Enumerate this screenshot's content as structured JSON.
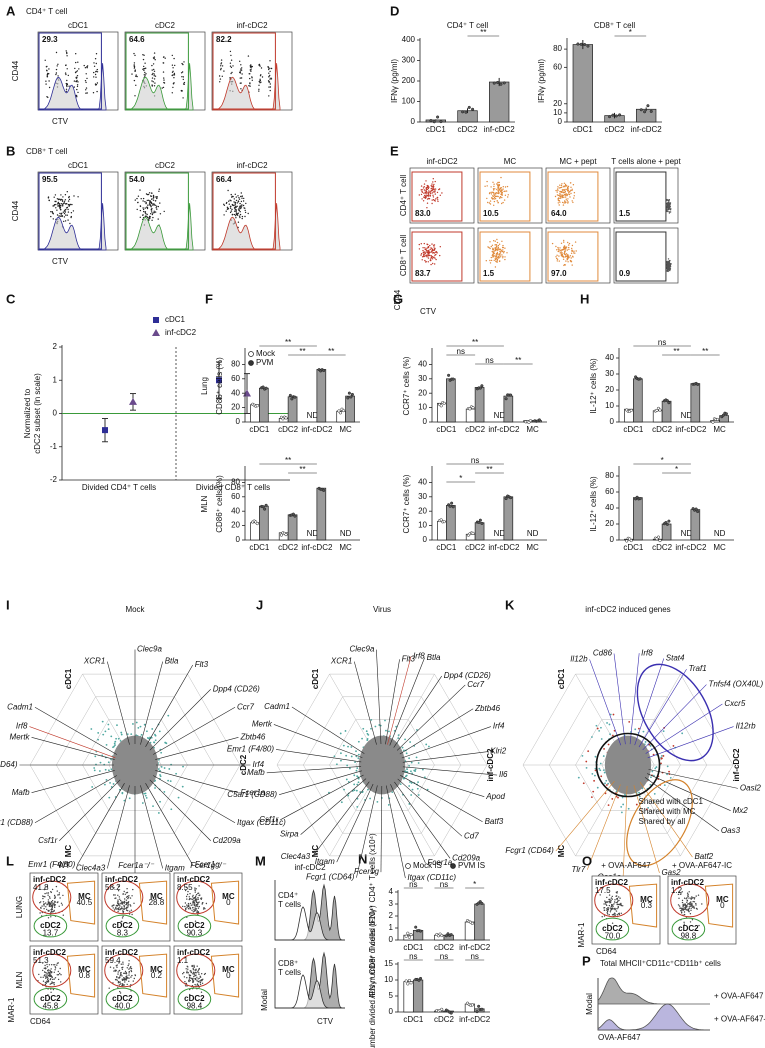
{
  "panels": {
    "A": {
      "label": "A",
      "title": "CD4⁺ T cell",
      "gates": [
        "cDC1",
        "cDC2",
        "inf-cDC2"
      ],
      "gate_values": [
        "29.3",
        "64.6",
        "82.2"
      ],
      "gate_colors": [
        "#2e2e96",
        "#3a9a3a",
        "#c0392b"
      ],
      "y_label": "CD44",
      "x_label": "CTV"
    },
    "B": {
      "label": "B",
      "title": "CD8⁺ T cell",
      "gates": [
        "cDC1",
        "cDC2",
        "inf-cDC2"
      ],
      "gate_values": [
        "95.5",
        "54.0",
        "66.4"
      ],
      "gate_colors": [
        "#2e2e96",
        "#3a9a3a",
        "#c0392b"
      ],
      "y_label": "CD44",
      "x_label": "CTV"
    },
    "C": {
      "label": "C"
    },
    "D": {
      "label": "D"
    },
    "E": {
      "label": "E",
      "columns": [
        "inf-cDC2",
        "MC",
        "MC + pept",
        "T cells alone + pept"
      ],
      "rows": [
        "CD4⁺ T cell",
        "CD8⁺ T cell"
      ],
      "values": [
        [
          "83.0",
          "10.5",
          "64.0",
          "1.5"
        ],
        [
          "83.7",
          "1.5",
          "97.0",
          "0.9"
        ]
      ],
      "column_colors": [
        "#c0392b",
        "#e08a3c",
        "#e08a3c",
        "#333333"
      ],
      "y_label": "CD44",
      "x_label": "CTV"
    },
    "F": {
      "label": "F"
    },
    "G": {
      "label": "G"
    },
    "H": {
      "label": "H"
    },
    "I": {
      "label": "I",
      "title": "Mock",
      "corners": [
        "cDC1",
        "cDC2",
        "MC"
      ],
      "corner_colors": [
        "#2e2e96",
        "#3a9a3a",
        "#d4822a"
      ],
      "genes": [
        "XCR1",
        "Clec9a",
        "Btla",
        "Flt3",
        "Dpp4 (CD26)",
        "Ccr7",
        "Zbtb46",
        "Irf4",
        "Fcer1a",
        "Itgax (CD11c)",
        "Cd209a",
        "Fcer1g",
        "Itgam",
        "Sirpa",
        "Clec4a3",
        "Emr1 (F4/80)",
        "Csf1r",
        "C5ar1 (CD88)",
        "Mafb",
        "Fcgr1 (CD64)",
        "Mertk",
        "Cadm1"
      ],
      "highlighted_genes": [
        "Irf8"
      ]
    },
    "J": {
      "label": "J",
      "title": "Virus",
      "corners": [
        "cDC1",
        "inf-cDC2",
        "MC"
      ],
      "corner_colors": [
        "#2e2e96",
        "#c0392b",
        "#d4822a"
      ],
      "genes": [
        "XCR1",
        "Clec9a",
        "Flt3",
        "Btla",
        "Dpp4 (CD26)",
        "Ccr7",
        "Zbtb46",
        "Irf4",
        "Klri2",
        "Il6",
        "Apod",
        "Batf3",
        "Cd7",
        "Cd209a",
        "Fcer1a",
        "Itgax (CD11c)",
        "Fcer1g",
        "Fcgr1 (CD64)",
        "Itgam",
        "Clec4a3",
        "Sirpa",
        "Csf1r",
        "C5ar1 (CD88)",
        "Mafb",
        "Emr1 (F4/80)",
        "Mertk",
        "Cadm1"
      ],
      "highlighted_genes": [
        "Irf8"
      ]
    },
    "K": {
      "label": "K",
      "title": "inf-cDC2 induced genes",
      "corners": [
        "cDC1",
        "inf-cDC2",
        "MC"
      ],
      "corner_colors": [
        "#2e2e96",
        "#c0392b",
        "#d4822a"
      ],
      "genes_cdc1": [
        "Il12b",
        "Cd86",
        "Irf8",
        "Stat4",
        "Traf1",
        "Tnfsf4 (OX40L)",
        "Cxcr5",
        "Il12rb"
      ],
      "genes_all": [
        "Oasl2",
        "Mx2",
        "Oas3"
      ],
      "genes_mc": [
        "Batf2",
        "Gas2",
        "Oas1a",
        "Tlr7",
        "Fcgr1 (CD64)"
      ],
      "legend": [
        "Shared with cDC1",
        "Shared with MC",
        "Shared by all"
      ],
      "legend_colors": [
        "#3a2fb0",
        "#d4822a",
        "#222222"
      ]
    },
    "L": {
      "label": "L",
      "columns": [
        "WT",
        "Fcer1a⁻/⁻",
        "Fcer1g⁻/⁻"
      ],
      "rows": [
        "LUNG",
        "MLN"
      ],
      "gates": [
        "inf-cDC2",
        "MC",
        "cDC2"
      ],
      "gate_colors": [
        "#c0392b",
        "#d4822a",
        "#3a9a3a"
      ],
      "values": [
        [
          [
            "41.8",
            "40.5",
            "13.7"
          ],
          [
            "58.2",
            "28.8",
            "8.3"
          ],
          [
            "8.55",
            "0",
            "90.3"
          ]
        ],
        [
          [
            "51.3",
            "0.8",
            "45.8"
          ],
          [
            "59.4",
            "0.2",
            "40.0"
          ],
          [
            "1.1",
            "0",
            "98.4"
          ]
        ]
      ],
      "y_label": "MAR-1",
      "x_label": "CD64"
    },
    "M": {
      "label": "M",
      "title": "inf-cDC2",
      "plots": [
        [
          "CD4⁺",
          "T cells"
        ],
        [
          "CD8⁺",
          "T cells"
        ]
      ],
      "y_label": "Modal",
      "x_label": "CTV"
    },
    "N": {
      "label": "N"
    },
    "O": {
      "label": "O",
      "columns": [
        "+ OVA-AF647",
        "+ OVA-AF647-IC"
      ],
      "gates": [
        "inf-cDC2",
        "MC",
        "cDC2"
      ],
      "gate_colors": [
        "#c0392b",
        "#d4822a",
        "#3a9a3a"
      ],
      "values": [
        [
          "17.5",
          "0.3",
          "70.0"
        ],
        [
          "1.2",
          "0",
          "98.8"
        ]
      ],
      "y_label": "MAR-1",
      "x_label": "CD64"
    },
    "P": {
      "label": "P",
      "title": "Total MHCII⁺CD11c⁺CD11b⁺ cells",
      "traces": [
        "+ OVA-AF647",
        "+ OVA-AF647-IC"
      ],
      "trace_colors": [
        "#777777",
        "#8c86c8"
      ],
      "y_label": "Modal",
      "x_label": "OVA-AF647"
    }
  },
  "chart_data": [
    {
      "type": "errorbar",
      "y_label": [
        "Normalized to",
        "cDC2 subset (ln scale)"
      ],
      "categories": [
        "Divided CD4⁺ T cells",
        "Divided CD8⁺ T cells"
      ],
      "series": [
        {
          "name": "cDC1",
          "color": "#2e2e96",
          "marker": "square",
          "values": [
            -0.5,
            1.0
          ],
          "errors": [
            0.35,
            0.55
          ]
        },
        {
          "name": "inf-cDC2",
          "color": "#6a4a8c",
          "marker": "triangle",
          "values": [
            0.35,
            0.6
          ],
          "errors": [
            0.25,
            0.6
          ]
        }
      ],
      "ylim": [
        -2,
        2
      ],
      "yticks": [
        -2,
        -1,
        0,
        1,
        2
      ]
    },
    {
      "type": "bar",
      "title": "CD4⁺ T cell",
      "y_label": "IFNγ (pg/ml)",
      "categories": [
        "cDC1",
        "cDC2",
        "inf-cDC2"
      ],
      "values": [
        10,
        55,
        195
      ],
      "errors": [
        3,
        12,
        20
      ],
      "color": "#9a9a9a",
      "ylim": [
        0,
        400
      ],
      "yticks": [
        0,
        100,
        200,
        300,
        400
      ],
      "annotations": [
        "**"
      ]
    },
    {
      "type": "bar",
      "title": "CD8⁺ T cell",
      "y_label": "IFNγ (pg/ml)",
      "categories": [
        "cDC1",
        "cDC2",
        "inf-cDC2"
      ],
      "values": [
        85,
        7,
        14
      ],
      "errors": [
        5,
        3,
        2
      ],
      "color": "#9a9a9a",
      "ylim": [
        0,
        90
      ],
      "yticks": [
        0,
        10,
        20,
        60,
        80
      ],
      "annotations": [
        "*"
      ]
    },
    {
      "type": "bar",
      "row_label": "Lung",
      "legend": true,
      "y_label": "CD86⁺ cells (%)",
      "categories": [
        "cDC1",
        "cDC2",
        "inf-cDC2",
        "MC"
      ],
      "series": [
        {
          "name": "Mock",
          "color": "#ffffff",
          "values": [
            24,
            5,
            null,
            15
          ]
        },
        {
          "name": "PVM",
          "color": "#9a9a9a",
          "values": [
            47,
            35,
            73,
            36
          ]
        }
      ],
      "ylim": [
        0,
        100
      ],
      "yticks": [
        0,
        20,
        40,
        60,
        80
      ],
      "nd_label": "ND",
      "annotations": [
        "**",
        "**",
        "**"
      ]
    },
    {
      "type": "bar",
      "row_label": "MLN",
      "y_label": "CD86⁺ cells (%)",
      "categories": [
        "cDC1",
        "cDC2",
        "inf-cDC2",
        "MC"
      ],
      "series": [
        {
          "name": "Mock",
          "color": "#ffffff",
          "values": [
            24,
            10,
            null,
            null
          ]
        },
        {
          "name": "PVM",
          "color": "#9a9a9a",
          "values": [
            47,
            35,
            72,
            null
          ]
        }
      ],
      "ylim": [
        0,
        100
      ],
      "yticks": [
        0,
        20,
        40,
        60,
        80
      ],
      "nd_label": "ND",
      "annotations": [
        "**",
        "**"
      ]
    },
    {
      "type": "bar",
      "y_label": "CCR7⁺ cells (%)",
      "categories": [
        "cDC1",
        "cDC2",
        "inf-cDC2",
        "MC"
      ],
      "series": [
        {
          "name": "Mock",
          "color": "#ffffff",
          "values": [
            13,
            9,
            null,
            1
          ]
        },
        {
          "name": "PVM",
          "color": "#9a9a9a",
          "values": [
            30,
            24,
            18,
            1
          ]
        }
      ],
      "ylim": [
        0,
        50
      ],
      "yticks": [
        0,
        10,
        20,
        30,
        40
      ],
      "nd_label": "ND",
      "annotations": [
        "**",
        "ns",
        "ns",
        "**"
      ]
    },
    {
      "type": "bar",
      "y_label": "CCR7⁺ cells (%)",
      "categories": [
        "cDC1",
        "cDC2",
        "inf-cDC2",
        "MC"
      ],
      "series": [
        {
          "name": "Mock",
          "color": "#ffffff",
          "values": [
            13,
            4,
            null,
            null
          ]
        },
        {
          "name": "PVM",
          "color": "#9a9a9a",
          "values": [
            24,
            12,
            30,
            null
          ]
        }
      ],
      "ylim": [
        0,
        50
      ],
      "yticks": [
        0,
        10,
        20,
        30,
        40
      ],
      "nd_label": "ND",
      "annotations": [
        "ns",
        "*",
        "**"
      ]
    },
    {
      "type": "bar",
      "y_label": "IL-12⁺ cells (%)",
      "categories": [
        "cDC1",
        "cDC2",
        "inf-cDC2",
        "MC"
      ],
      "series": [
        {
          "name": "Mock",
          "color": "#ffffff",
          "values": [
            8,
            7,
            null,
            1
          ]
        },
        {
          "name": "PVM",
          "color": "#9a9a9a",
          "values": [
            27,
            13,
            24,
            4
          ]
        }
      ],
      "ylim": [
        0,
        45
      ],
      "yticks": [
        0,
        10,
        20,
        30,
        40
      ],
      "nd_label": "ND",
      "annotations": [
        "ns",
        "**",
        "**"
      ]
    },
    {
      "type": "bar",
      "y_label": "IL-12⁺ cells (%)",
      "categories": [
        "cDC1",
        "cDC2",
        "inf-cDC2",
        "MC"
      ],
      "series": [
        {
          "name": "Mock",
          "color": "#ffffff",
          "values": [
            1,
            1,
            null,
            null
          ]
        },
        {
          "name": "PVM",
          "color": "#9a9a9a",
          "values": [
            53,
            20,
            38,
            null
          ]
        }
      ],
      "ylim": [
        0,
        90
      ],
      "yticks": [
        0,
        20,
        40,
        60,
        80
      ],
      "nd_label": "ND",
      "annotations": [
        "*",
        "*"
      ]
    },
    {
      "type": "bar",
      "legend": true,
      "y_label": "Abs number divided IFNγ⁺ CD4⁺ T cells (x10⁴)",
      "categories": [
        "cDC1",
        "cDC2",
        "inf-cDC2"
      ],
      "series": [
        {
          "name": "Mock IS",
          "color": "#ffffff",
          "values": [
            0.4,
            0.4,
            1.5
          ]
        },
        {
          "name": "PVM IS",
          "color": "#9a9a9a",
          "values": [
            0.8,
            0.4,
            3.0
          ]
        }
      ],
      "ylim": [
        0,
        4
      ],
      "yticks": [
        0,
        1,
        2,
        3,
        4
      ],
      "annotations": [
        "ns",
        "ns",
        "*"
      ]
    },
    {
      "type": "bar",
      "y_label": "Abs number divided IFNγ⁺ CD8⁺ T cells (x10⁴)",
      "categories": [
        "cDC1",
        "cDC2",
        "inf-cDC2"
      ],
      "series": [
        {
          "name": "Mock IS",
          "color": "#ffffff",
          "values": [
            9.5,
            0.3,
            2.5
          ]
        },
        {
          "name": "PVM IS",
          "color": "#9a9a9a",
          "values": [
            10,
            0.3,
            1.0
          ]
        }
      ],
      "ylim": [
        0,
        15
      ],
      "yticks": [
        0,
        5,
        10,
        15
      ],
      "annotations": [
        "ns",
        "ns",
        "ns"
      ]
    }
  ]
}
